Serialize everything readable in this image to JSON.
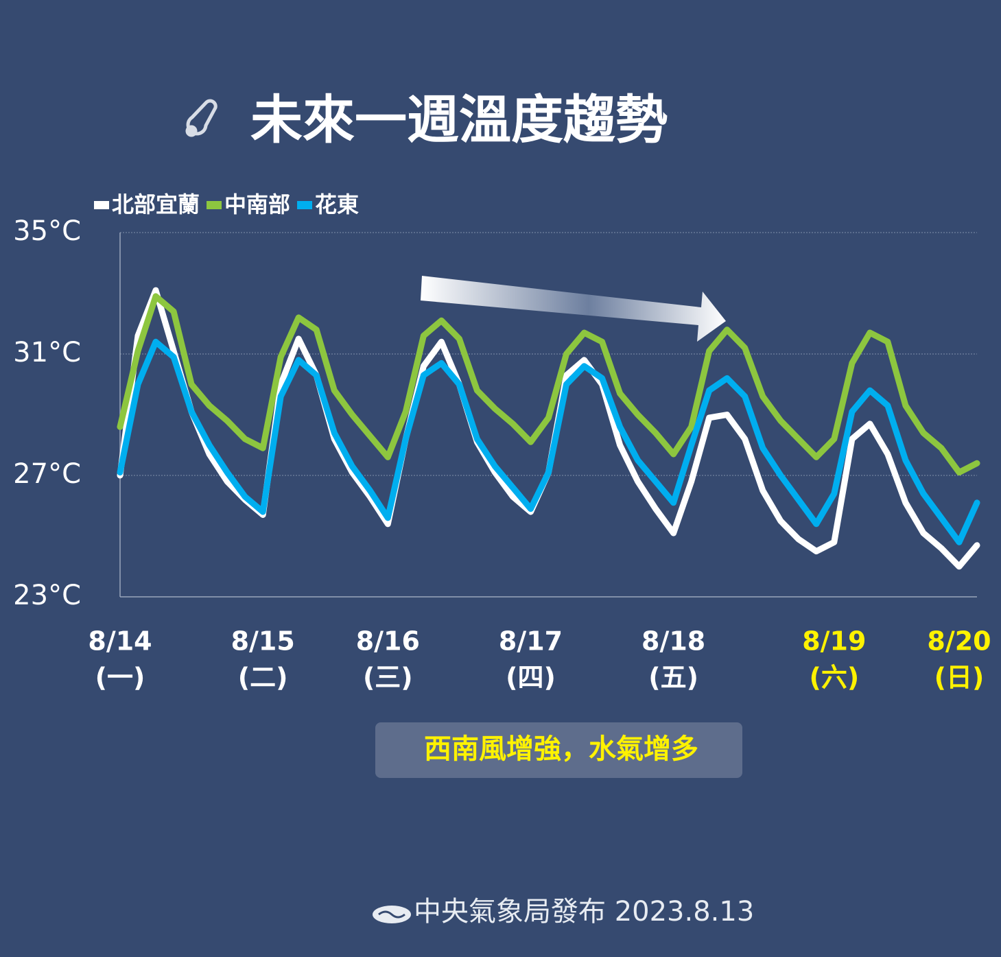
{
  "chart_data": {
    "type": "line",
    "title": "未來一週溫度趨勢",
    "categories": [
      "8/14",
      null,
      null,
      null,
      null,
      null,
      null,
      null,
      "8/15",
      null,
      null,
      null,
      null,
      null,
      null,
      "8/16",
      null,
      null,
      null,
      null,
      null,
      null,
      null,
      "8/17",
      null,
      null,
      null,
      null,
      null,
      null,
      null,
      "8/18",
      null,
      null,
      null,
      null,
      null,
      null,
      null,
      null,
      "8/19",
      null,
      null,
      null,
      null,
      null,
      null,
      "8/20",
      null
    ],
    "weekdays": [
      "(一)",
      null,
      null,
      null,
      null,
      null,
      null,
      null,
      "(二)",
      null,
      null,
      null,
      null,
      null,
      null,
      "(三)",
      null,
      null,
      null,
      null,
      null,
      null,
      null,
      "(四)",
      null,
      null,
      null,
      null,
      null,
      null,
      null,
      "(五)",
      null,
      null,
      null,
      null,
      null,
      null,
      null,
      null,
      "(六)",
      null,
      null,
      null,
      null,
      null,
      null,
      "(日)",
      null
    ],
    "category_colors": [
      "#ffffff",
      null,
      null,
      null,
      null,
      null,
      null,
      null,
      "#ffffff",
      null,
      null,
      null,
      null,
      null,
      null,
      "#ffffff",
      null,
      null,
      null,
      null,
      null,
      null,
      null,
      "#ffffff",
      null,
      null,
      null,
      null,
      null,
      null,
      null,
      "#ffffff",
      null,
      null,
      null,
      null,
      null,
      null,
      null,
      null,
      "#fff200",
      null,
      null,
      null,
      null,
      null,
      null,
      "#fff200",
      null
    ],
    "series": [
      {
        "name": "北部宜蘭",
        "color": "#ffffff",
        "values": [
          27.0,
          31.6,
          33.1,
          31.1,
          29.1,
          27.7,
          26.8,
          26.2,
          25.7,
          30.0,
          31.5,
          30.3,
          28.2,
          27.1,
          26.3,
          25.4,
          28.2,
          30.6,
          31.4,
          30.0,
          28.1,
          27.1,
          26.3,
          25.8,
          27.1,
          30.3,
          30.8,
          30.0,
          28.0,
          26.8,
          25.9,
          25.1,
          26.8,
          28.9,
          29.0,
          28.2,
          26.5,
          25.5,
          24.9,
          24.5,
          24.8,
          28.2,
          28.7,
          27.7,
          26.1,
          25.1,
          24.6,
          24.0,
          24.7
        ]
      },
      {
        "name": "中南部",
        "color": "#8dc63f",
        "values": [
          28.6,
          31.1,
          32.9,
          32.4,
          30.0,
          29.3,
          28.8,
          28.2,
          27.9,
          30.9,
          32.2,
          31.8,
          29.8,
          29.0,
          28.3,
          27.6,
          29.1,
          31.6,
          32.1,
          31.5,
          29.8,
          29.2,
          28.7,
          28.1,
          28.9,
          31.0,
          31.7,
          31.4,
          29.7,
          29.0,
          28.4,
          27.7,
          28.6,
          31.1,
          31.8,
          31.2,
          29.6,
          28.8,
          28.2,
          27.6,
          28.2,
          30.7,
          31.7,
          31.4,
          29.3,
          28.4,
          27.9,
          27.1,
          27.4
        ]
      },
      {
        "name": "花東",
        "color": "#00aeef",
        "values": [
          27.1,
          30.0,
          31.4,
          30.9,
          29.1,
          28.0,
          27.1,
          26.3,
          25.8,
          29.6,
          30.8,
          30.3,
          28.4,
          27.3,
          26.5,
          25.6,
          28.2,
          30.3,
          30.7,
          30.0,
          28.2,
          27.3,
          26.6,
          25.9,
          27.1,
          30.0,
          30.6,
          30.2,
          28.6,
          27.5,
          26.8,
          26.1,
          28.0,
          29.8,
          30.2,
          29.6,
          27.9,
          27.0,
          26.2,
          25.4,
          26.4,
          29.1,
          29.8,
          29.3,
          27.5,
          26.4,
          25.6,
          24.8,
          26.1
        ]
      }
    ],
    "ylim": [
      23,
      35
    ],
    "yticks": [
      {
        "value": 23,
        "label": "23°C"
      },
      {
        "value": 27,
        "label": "27°C"
      },
      {
        "value": 31,
        "label": "31°C"
      },
      {
        "value": 35,
        "label": "35°C"
      }
    ],
    "grid": true,
    "legend": "top-left",
    "annotation": "西南風增強，水氣增多",
    "source": "中央氣象局發布 2023.8.13"
  }
}
